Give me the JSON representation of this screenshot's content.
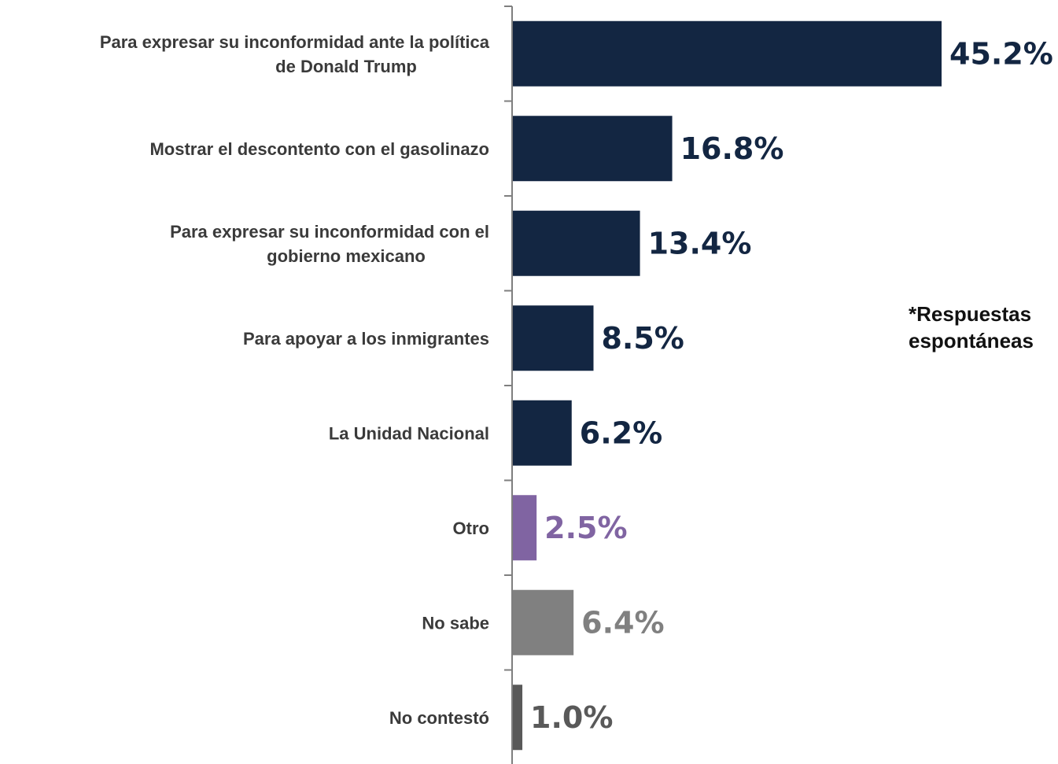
{
  "chart_data": {
    "type": "bar",
    "orientation": "horizontal",
    "categories": [
      [
        "Para expresar su inconformidad ante la política",
        "de Donald Trump"
      ],
      [
        "Mostrar el descontento con el gasolinazo"
      ],
      [
        "Para expresar su inconformidad con el",
        "gobierno mexicano"
      ],
      [
        "Para apoyar a los inmigrantes"
      ],
      [
        "La Unidad Nacional"
      ],
      [
        "Otro"
      ],
      [
        "No sabe"
      ],
      [
        "No contestó"
      ]
    ],
    "values": [
      45.2,
      16.8,
      13.4,
      8.5,
      6.2,
      2.5,
      6.4,
      1.0
    ],
    "value_labels": [
      "45.2%",
      "16.8%",
      "13.4%",
      "8.5%",
      "6.2%",
      "2.5%",
      "6.4%",
      "1.0%"
    ],
    "bar_colors": [
      "#132642",
      "#132642",
      "#132642",
      "#132642",
      "#132642",
      "#8064a2",
      "#808080",
      "#595959"
    ],
    "label_colors": [
      "#132642",
      "#132642",
      "#132642",
      "#132642",
      "#132642",
      "#8064a2",
      "#808080",
      "#595959"
    ],
    "xlim": [
      0,
      45.2
    ],
    "grid": false,
    "legend": "none"
  },
  "note": {
    "line1": "*Respuestas",
    "line2": "espontáneas"
  }
}
